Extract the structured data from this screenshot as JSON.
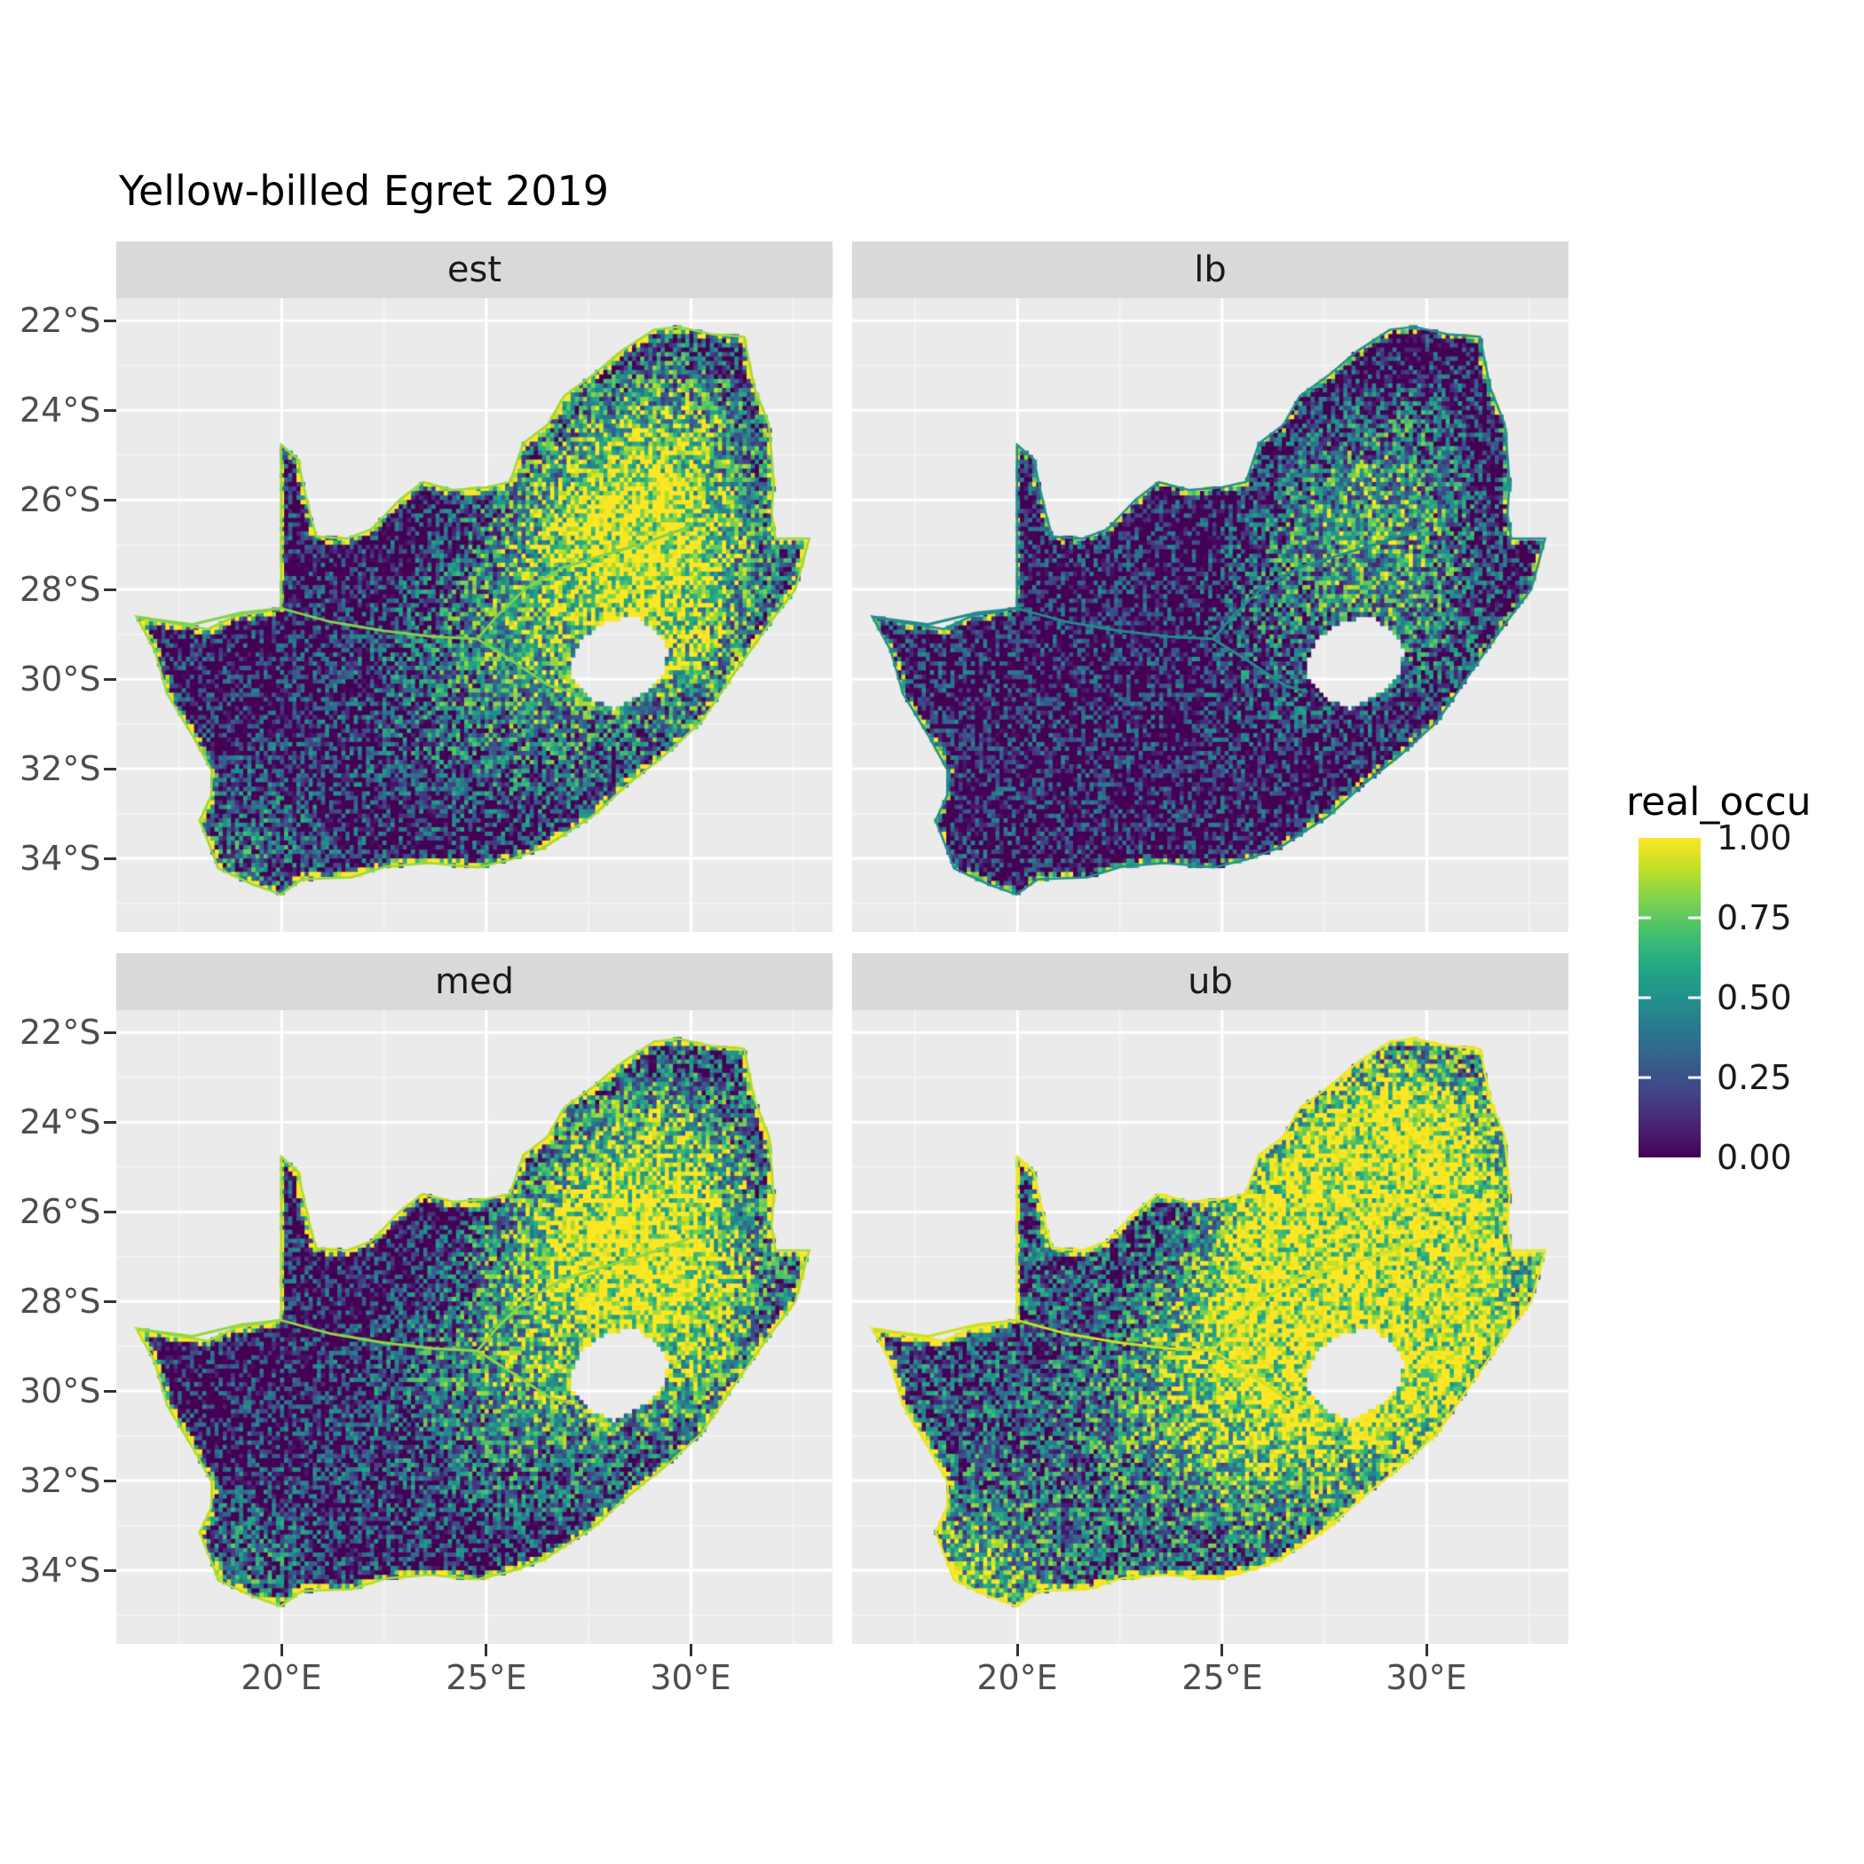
{
  "title": "Yellow-billed Egret 2019",
  "chart_data": {
    "type": "heatmap",
    "title": "Yellow-billed Egret 2019",
    "facets": [
      "est",
      "lb",
      "med",
      "ub"
    ],
    "x_ticks": [
      "20°E",
      "25°E",
      "30°E"
    ],
    "x_tick_values": [
      20,
      25,
      30
    ],
    "y_ticks": [
      "22°S",
      "24°S",
      "26°S",
      "28°S",
      "30°S",
      "32°S",
      "34°S"
    ],
    "y_tick_values": [
      -22,
      -24,
      -26,
      -28,
      -30,
      -32,
      -34
    ],
    "lon_range": [
      15.96,
      33.46
    ],
    "lat_range": [
      -35.64,
      -21.5
    ],
    "legend": {
      "title": "real_occu",
      "ticks": [
        "1.00",
        "0.75",
        "0.50",
        "0.25",
        "0.00"
      ],
      "tick_values": [
        1.0,
        0.75,
        0.5,
        0.25,
        0.0
      ]
    },
    "colormap": {
      "name": "viridis",
      "stops": [
        [
          0,
          "#440154"
        ],
        [
          0.1,
          "#482475"
        ],
        [
          0.2,
          "#414487"
        ],
        [
          0.3,
          "#355f8d"
        ],
        [
          0.4,
          "#2a788e"
        ],
        [
          0.5,
          "#21918c"
        ],
        [
          0.6,
          "#22a884"
        ],
        [
          0.7,
          "#44bf70"
        ],
        [
          0.8,
          "#7ad151"
        ],
        [
          0.9,
          "#bddf26"
        ],
        [
          1,
          "#fde725"
        ]
      ]
    },
    "style": {
      "panel_bg": "#ebebeb",
      "grid": "#ffffff",
      "strip_bg": "#d9d9d9",
      "strip_text": "#1a1a1a",
      "axis_text": "#4d4d4d",
      "title_color": "#000000"
    },
    "panels": [
      {
        "label": "est",
        "gain": 1.0,
        "offset": 0.0,
        "rim": 0.85
      },
      {
        "label": "lb",
        "gain": 0.8,
        "offset": -0.25,
        "rim": 0.5
      },
      {
        "label": "med",
        "gain": 1.05,
        "offset": 0.0,
        "rim": 0.88
      },
      {
        "label": "ub",
        "gain": 1.45,
        "offset": 0.22,
        "rim": 0.97
      }
    ]
  }
}
